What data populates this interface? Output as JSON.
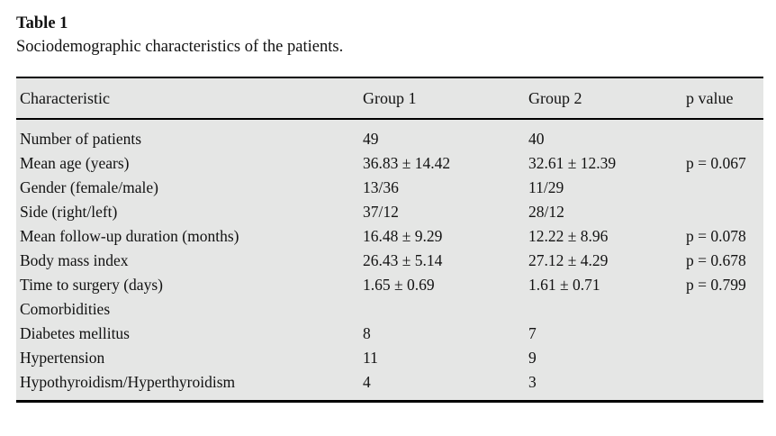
{
  "caption": {
    "title": "Table 1",
    "subtitle": "Sociodemographic characteristics of the patients."
  },
  "table": {
    "headers": [
      "Characteristic",
      "Group 1",
      "Group 2",
      "p value"
    ],
    "rows": [
      {
        "cells": [
          "Number of patients",
          "49",
          "40",
          ""
        ]
      },
      {
        "cells": [
          "Mean age (years)",
          "36.83 ± 14.42",
          "32.61 ± 12.39",
          "p = 0.067"
        ]
      },
      {
        "cells": [
          "Gender (female/male)",
          "13/36",
          "11/29",
          ""
        ]
      },
      {
        "cells": [
          "Side (right/left)",
          "37/12",
          "28/12",
          ""
        ]
      },
      {
        "cells": [
          "Mean follow-up duration (months)",
          "16.48 ± 9.29",
          "12.22 ± 8.96",
          "p = 0.078"
        ]
      },
      {
        "cells": [
          "Body mass index",
          "26.43 ± 5.14",
          "27.12 ± 4.29",
          "p = 0.678"
        ]
      },
      {
        "cells": [
          "Time to surgery (days)",
          "1.65 ± 0.69",
          "1.61 ± 0.71",
          "p = 0.799"
        ]
      },
      {
        "cells": [
          "Comorbidities",
          "",
          "",
          ""
        ]
      },
      {
        "cells": [
          "Diabetes mellitus",
          "8",
          "7",
          ""
        ]
      },
      {
        "cells": [
          "Hypertension",
          "11",
          "9",
          ""
        ]
      },
      {
        "cells": [
          "Hypothyroidism/Hyperthyroidism",
          "4",
          "3",
          ""
        ]
      }
    ]
  },
  "colors": {
    "page_background": "#ffffff",
    "table_background": "#e5e6e5",
    "border": "#000000",
    "text": "#121212"
  }
}
